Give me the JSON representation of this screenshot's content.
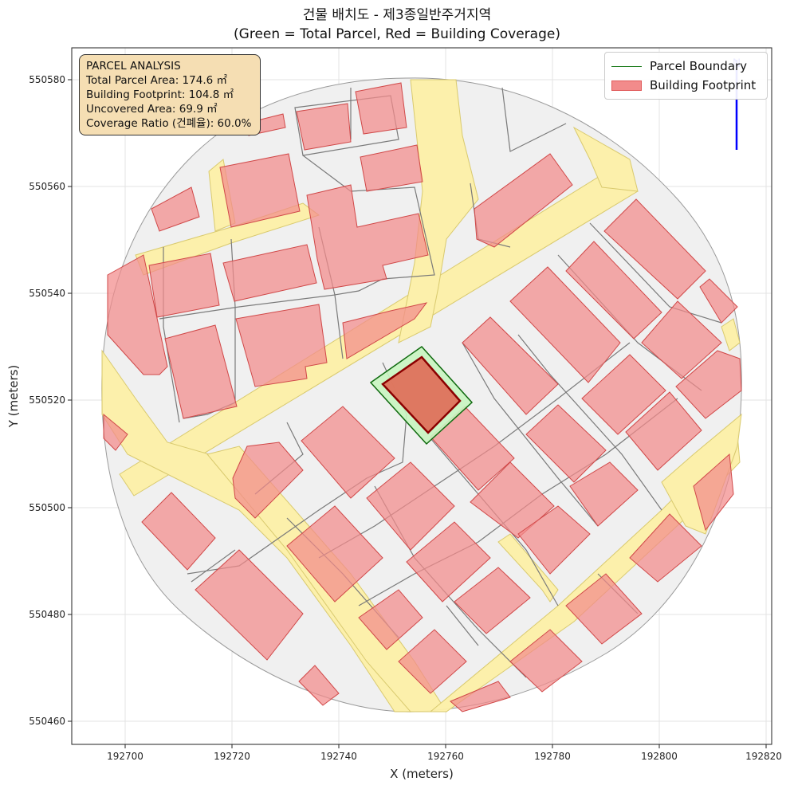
{
  "title_line1": "건물 배치도 - 제3종일반주거지역",
  "title_line2": "(Green = Total Parcel, Red = Building Coverage)",
  "xlabel": "X (meters)",
  "ylabel": "Y (meters)",
  "x_ticks": [
    "192700",
    "192720",
    "192740",
    "192760",
    "192780",
    "192800",
    "192820"
  ],
  "y_ticks": [
    "550580",
    "550560",
    "550540",
    "550520",
    "550500",
    "550480",
    "550460"
  ],
  "info": {
    "heading": "PARCEL ANALYSIS",
    "total_area": "Total Parcel Area: 174.6 ㎡",
    "footprint": "Building Footprint: 104.8 ㎡",
    "uncovered": "Uncovered Area: 69.9 ㎡",
    "ratio": "Coverage Ratio (건폐율): 60.0%"
  },
  "legend": {
    "parcel": "Parcel Boundary",
    "building": "Building Footprint"
  },
  "colors": {
    "parcel_edge": "#1a7a1a",
    "parcel_fill": "#c8f5c0",
    "building_fill": "#f28b8b",
    "building_edge": "#c0392b",
    "target_building": "#e06a55",
    "road": "#fdf0a8",
    "block": "#f0f0f0",
    "north_arrow": "#0000ff"
  },
  "x_range": [
    192690,
    192822
  ],
  "y_range": [
    550456,
    550586
  ],
  "north_arrow": "N"
}
